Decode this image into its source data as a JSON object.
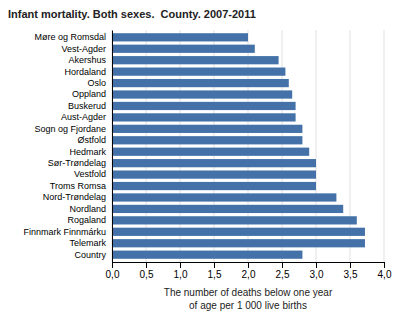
{
  "chart_data": {
    "type": "bar",
    "orientation": "horizontal",
    "title": "Infant mortality. Both sexes.  County. 2007-2011",
    "xlabel": [
      "The number of deaths below one year",
      "of age per 1 000 live births"
    ],
    "categories": [
      "Country",
      "Telemark",
      "Finnmark Finnmárku",
      "Rogaland",
      "Nordland",
      "Nord-Trøndelag",
      "Troms Romsa",
      "Vestfold",
      "Sør-Trøndelag",
      "Hedmark",
      "Østfold",
      "Sogn og Fjordane",
      "Aust-Agder",
      "Buskerud",
      "Oppland",
      "Oslo",
      "Hordaland",
      "Akershus",
      "Vest-Agder",
      "Møre og Romsdal"
    ],
    "values": [
      2.8,
      3.72,
      3.72,
      3.6,
      3.4,
      3.3,
      3.0,
      3.0,
      3.0,
      2.9,
      2.8,
      2.8,
      2.7,
      2.7,
      2.65,
      2.6,
      2.55,
      2.45,
      2.1,
      2.0
    ],
    "color": "#4472a8",
    "xlim": [
      0,
      4.0
    ],
    "xticks": [
      {
        "value": 0.0,
        "label": "0,0"
      },
      {
        "value": 0.5,
        "label": "0,5"
      },
      {
        "value": 1.0,
        "label": "1,0"
      },
      {
        "value": 1.5,
        "label": "1,5"
      },
      {
        "value": 2.0,
        "label": "2,0"
      },
      {
        "value": 2.5,
        "label": "2,5"
      },
      {
        "value": 3.0,
        "label": "3,0"
      },
      {
        "value": 3.5,
        "label": "3,5"
      },
      {
        "value": 4.0,
        "label": "4,0"
      }
    ],
    "grid": true
  }
}
